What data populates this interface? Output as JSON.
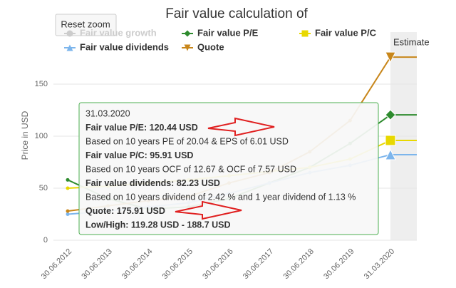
{
  "chart_data": {
    "type": "line",
    "title": "Fair value calculation of",
    "y_label": "Price in USD",
    "categories": [
      "30.06.2012",
      "30.06.2013",
      "30.06.2014",
      "30.06.2015",
      "30.06.2016",
      "30.06.2017",
      "30.06.2018",
      "30.06.2019",
      "31.03.2020"
    ],
    "series": [
      {
        "name": "Fair value growth",
        "color": "#cccccc",
        "marker": "circle",
        "visible": false,
        "values": [
          null,
          null,
          null,
          null,
          null,
          null,
          null,
          null,
          null
        ]
      },
      {
        "name": "Fair value P/E",
        "color": "#2e8b2e",
        "marker": "diamond",
        "visible": true,
        "values": [
          58,
          40,
          30,
          32,
          40,
          55,
          70,
          93,
          120.44
        ]
      },
      {
        "name": "Fair value P/C",
        "color": "#e8d800",
        "marker": "square",
        "visible": true,
        "values": [
          50,
          52,
          55,
          58,
          62,
          66,
          70,
          78,
          95.91
        ]
      },
      {
        "name": "Fair value dividends",
        "color": "#7cb5ec",
        "marker": "triangle",
        "visible": true,
        "values": [
          25,
          28,
          32,
          36,
          45,
          55,
          65,
          72,
          82.23
        ]
      },
      {
        "name": "Quote",
        "color": "#c8861a",
        "marker": "triangle-down",
        "visible": true,
        "values": [
          28,
          33,
          38,
          42,
          55,
          65,
          85,
          115,
          175.91
        ]
      }
    ],
    "ylim": [
      0,
      200
    ],
    "yticks": [
      0,
      50,
      100,
      150
    ],
    "grid": true,
    "annotation": "Estimate",
    "button": "Reset zoom",
    "tooltip": [
      {
        "text": "31.03.2020",
        "bold": false
      },
      {
        "text": "Fair value P/E: 120.44 USD",
        "bold": true
      },
      {
        "text": "Based on 10 years PE of 20.04 & EPS of 6.01 USD",
        "bold": false
      },
      {
        "text": "Fair value P/C: 95.91 USD",
        "bold": true
      },
      {
        "text": "Based on 10 years OCF of 12.67 & OCF of 7.57 USD",
        "bold": false
      },
      {
        "text": "Fair value dividends: 82.23 USD",
        "bold": true
      },
      {
        "text": "Based on 10 years dividend of 2.42 % and 1 year dividend of 1.13 %",
        "bold": false
      },
      {
        "text": "Quote: 175.91 USD",
        "bold": true
      },
      {
        "text": "Low/High: 119.28 USD - 188.7 USD",
        "bold": true
      }
    ]
  }
}
